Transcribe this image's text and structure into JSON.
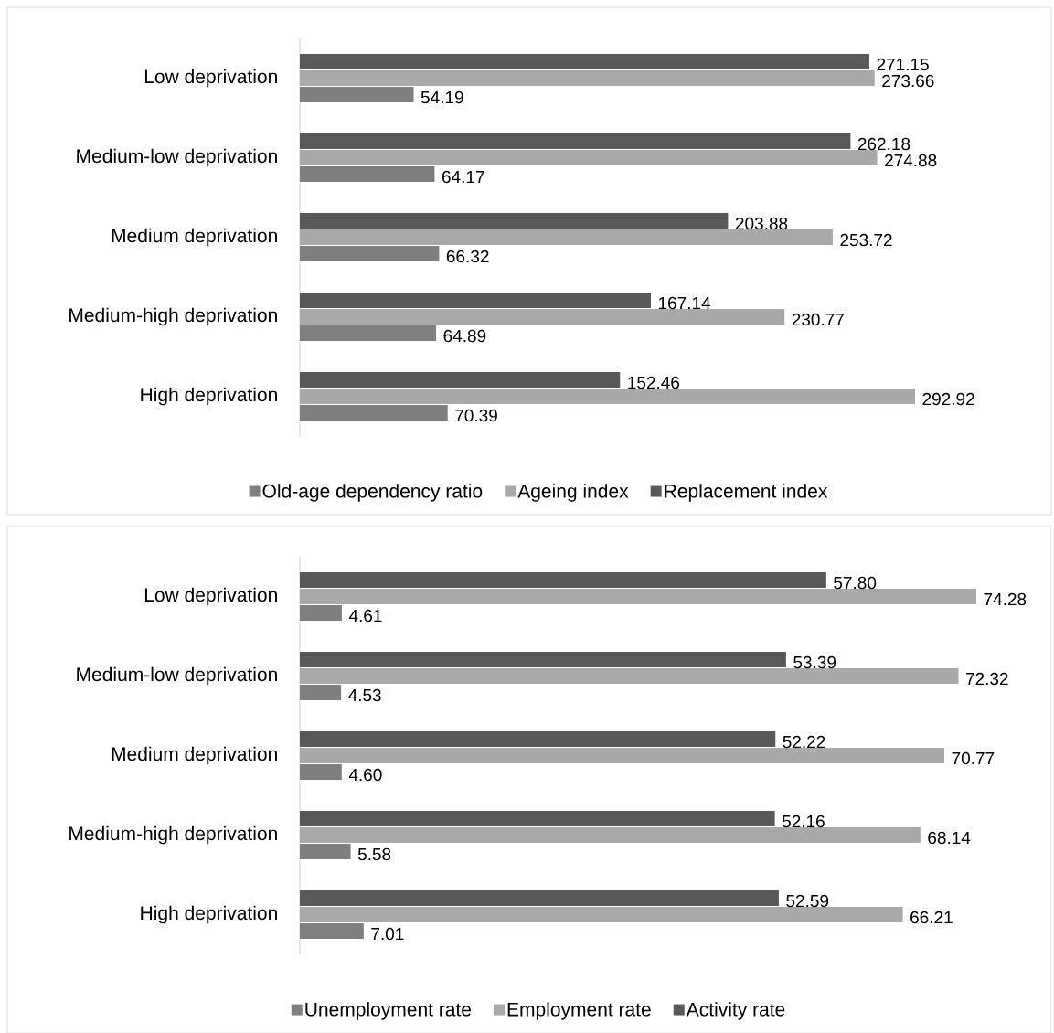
{
  "chart_data": [
    {
      "type": "bar",
      "orientation": "horizontal",
      "legend": "bottom",
      "categories": [
        "Low deprivation",
        "Medium-low deprivation",
        "Medium deprivation",
        "Medium-high deprivation",
        "High deprivation"
      ],
      "series": [
        {
          "name": "Old-age dependency ratio",
          "color": "#7f7f7f",
          "values": [
            54.19,
            64.17,
            66.32,
            64.89,
            70.39
          ],
          "value_labels": [
            "54.19",
            "64.17",
            "66.32",
            "64.89",
            "70.39"
          ]
        },
        {
          "name": "Ageing index",
          "color": "#a9a9a9",
          "values": [
            273.66,
            274.88,
            253.72,
            230.77,
            292.92
          ],
          "value_labels": [
            "273.66",
            "274.88",
            "253.72",
            "230.77",
            "292.92"
          ]
        },
        {
          "name": "Replacement index",
          "color": "#595959",
          "values": [
            271.15,
            262.18,
            203.88,
            167.14,
            152.46
          ],
          "value_labels": [
            "271.15",
            "262.18",
            "203.88",
            "167.14",
            "152.46"
          ]
        }
      ]
    },
    {
      "type": "bar",
      "orientation": "horizontal",
      "legend": "bottom",
      "categories": [
        "Low deprivation",
        "Medium-low deprivation",
        "Medium deprivation",
        "Medium-high deprivation",
        "High deprivation"
      ],
      "series": [
        {
          "name": "Unemployment rate",
          "color": "#7f7f7f",
          "values": [
            4.61,
            4.53,
            4.6,
            5.58,
            7.01
          ],
          "value_labels": [
            "4.61",
            "4.53",
            "4.60",
            "5.58",
            "7.01"
          ]
        },
        {
          "name": "Employment rate",
          "color": "#a9a9a9",
          "values": [
            74.28,
            72.32,
            70.77,
            68.14,
            66.21
          ],
          "value_labels": [
            "74.28",
            "72.32",
            "70.77",
            "68.14",
            "66.21"
          ]
        },
        {
          "name": "Activity rate",
          "color": "#595959",
          "values": [
            57.8,
            53.39,
            52.22,
            52.16,
            52.59
          ],
          "value_labels": [
            "57.80",
            "53.39",
            "52.22",
            "52.16",
            "52.59"
          ]
        }
      ]
    }
  ]
}
